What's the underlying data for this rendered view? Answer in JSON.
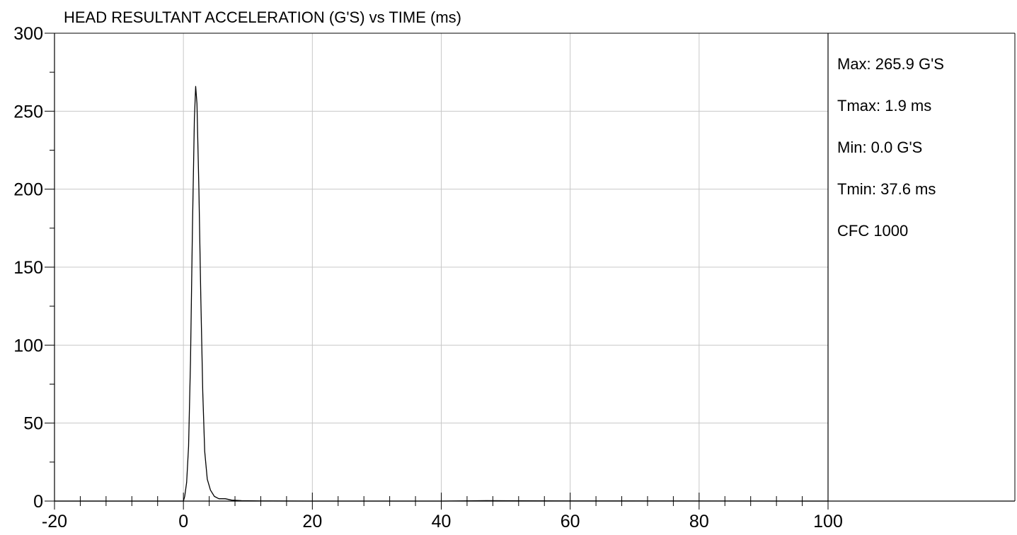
{
  "chart_data": {
    "type": "line",
    "title": "HEAD RESULTANT ACCELERATION (G'S) vs TIME (ms)",
    "xlabel": "",
    "ylabel": "",
    "xlim": [
      -20,
      100
    ],
    "ylim": [
      0,
      300
    ],
    "x_ticks": [
      "-20",
      "0",
      "20",
      "40",
      "60",
      "80",
      "100"
    ],
    "y_ticks": [
      "0",
      "50",
      "100",
      "150",
      "200",
      "250",
      "300"
    ],
    "grid": true,
    "series": [
      {
        "color": "#000000",
        "points": [
          [
            -20,
            0
          ],
          [
            0,
            0
          ],
          [
            0.2,
            3
          ],
          [
            0.5,
            12
          ],
          [
            0.8,
            35
          ],
          [
            1.1,
            90
          ],
          [
            1.4,
            175
          ],
          [
            1.7,
            245
          ],
          [
            1.9,
            265.9
          ],
          [
            2.1,
            255
          ],
          [
            2.4,
            200
          ],
          [
            2.7,
            130
          ],
          [
            3.0,
            70
          ],
          [
            3.3,
            32
          ],
          [
            3.7,
            14
          ],
          [
            4.2,
            7
          ],
          [
            4.8,
            3
          ],
          [
            5.5,
            1.5
          ],
          [
            6.5,
            1.5
          ],
          [
            7.5,
            0.6
          ],
          [
            9,
            0.3
          ],
          [
            12,
            0.1
          ],
          [
            20,
            0
          ],
          [
            40,
            0
          ],
          [
            47,
            0.3
          ],
          [
            50,
            0.2
          ],
          [
            60,
            0.1
          ],
          [
            100,
            0
          ]
        ]
      }
    ],
    "stats": {
      "max": "Max: 265.9 G'S",
      "tmax": "Tmax: 1.9 ms",
      "min": "Min: 0.0 G'S",
      "tmin": "Tmin: 37.6 ms",
      "cfc": "CFC 1000"
    }
  }
}
